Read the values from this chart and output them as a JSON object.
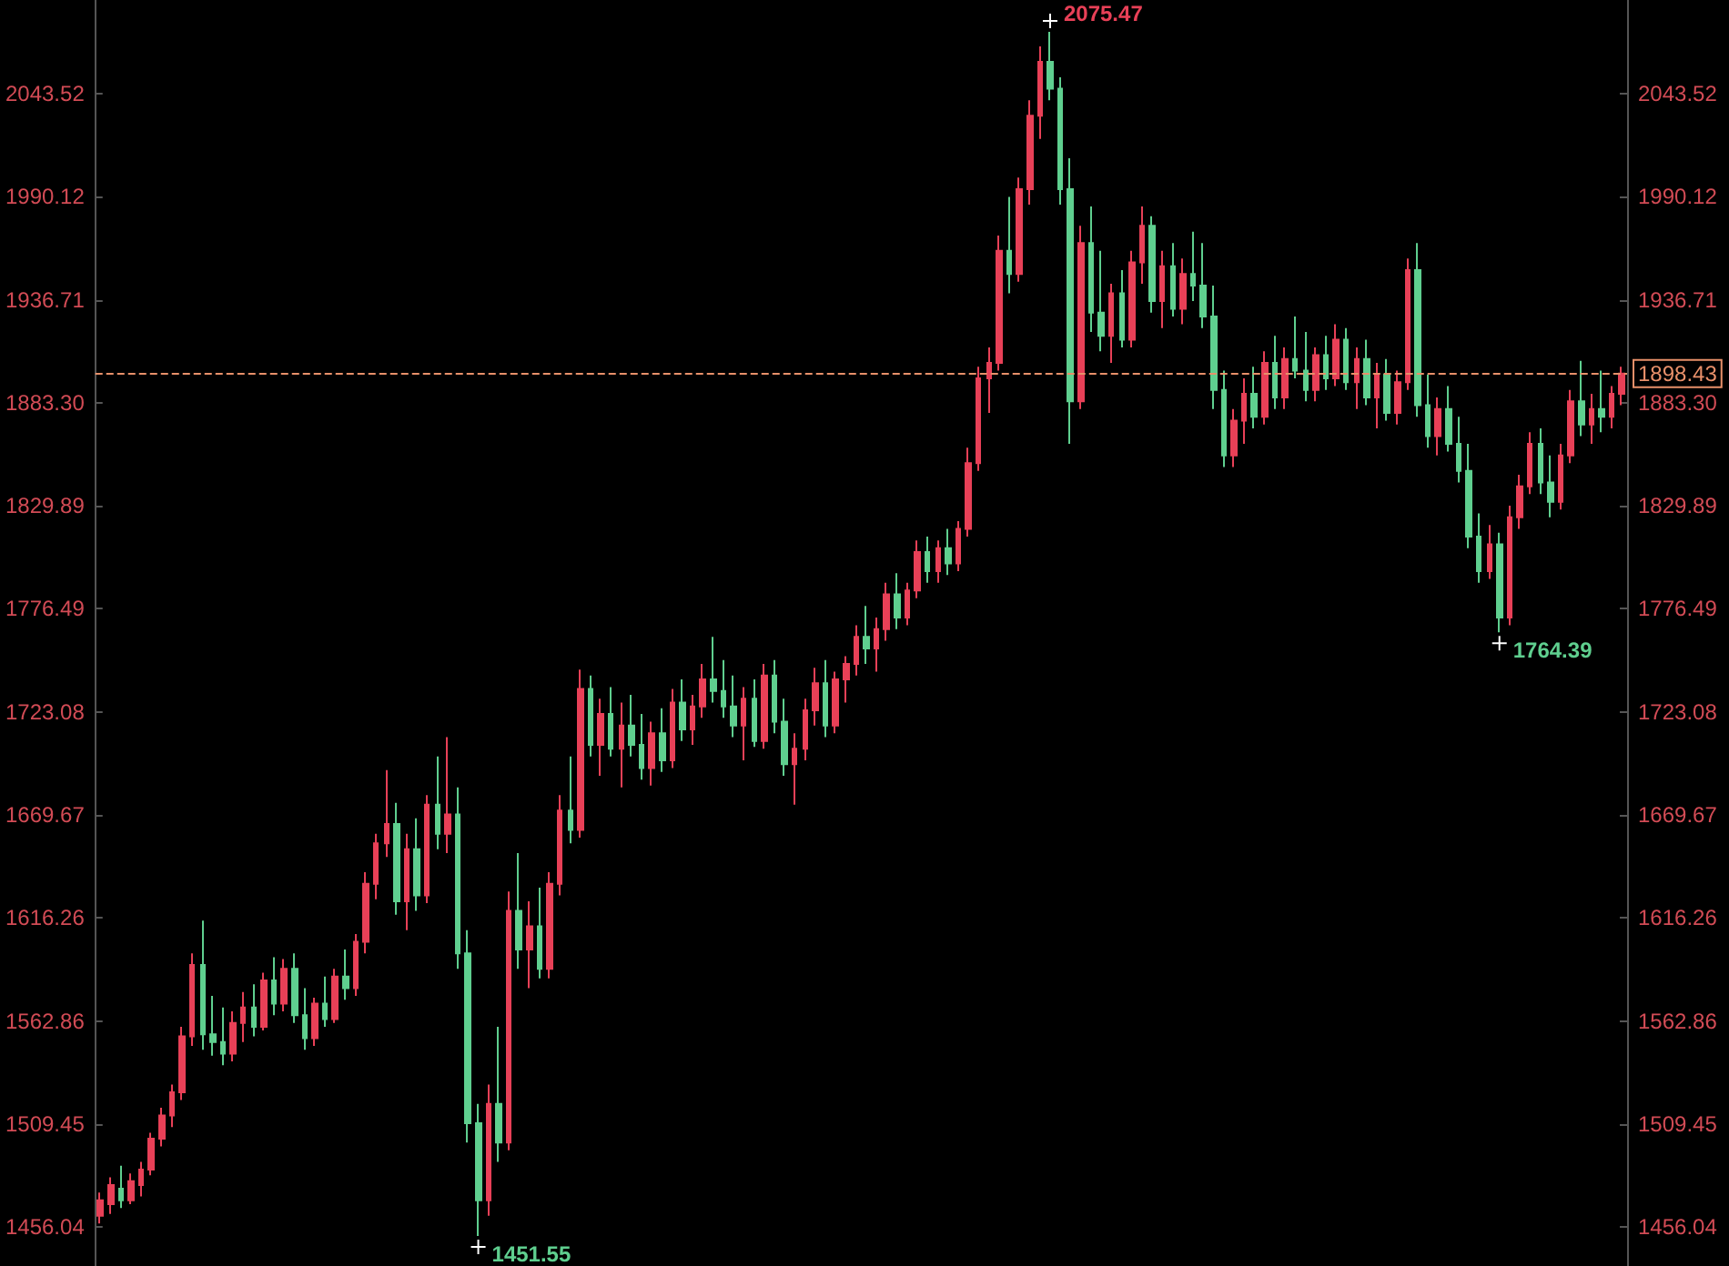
{
  "chart_data": {
    "type": "candlestick",
    "categories": [
      null,
      null,
      null,
      null,
      null,
      null,
      null,
      null,
      null,
      null,
      null,
      null,
      null,
      null,
      null,
      null,
      null,
      null,
      null,
      null,
      null,
      null,
      null,
      null,
      null,
      null,
      null,
      null,
      null,
      null,
      null,
      null,
      null,
      null,
      null,
      null,
      null,
      null,
      null,
      null,
      null,
      null,
      null,
      null,
      null,
      null,
      null,
      null,
      null,
      null,
      null,
      null,
      null,
      null,
      null,
      null,
      null,
      null,
      null,
      null,
      null,
      null,
      null,
      null,
      null,
      null,
      null,
      null,
      null,
      null,
      null,
      null,
      null,
      null,
      null,
      null,
      null,
      null,
      null,
      null,
      null,
      null,
      null,
      null,
      null,
      null,
      null,
      null,
      null,
      null,
      null,
      null,
      null,
      null,
      null,
      null,
      null,
      null,
      null,
      null,
      null,
      null,
      null,
      null,
      null,
      null,
      null,
      null,
      null,
      null,
      null,
      null,
      null,
      null,
      null,
      null,
      null,
      null,
      null,
      null,
      null,
      null,
      null,
      null,
      null,
      null,
      null,
      null,
      null,
      null,
      null,
      null,
      null,
      null,
      null,
      null,
      null,
      null,
      null,
      null,
      null,
      null,
      null,
      null,
      null,
      null,
      null,
      null,
      null,
      null
    ],
    "ohlc": [
      [
        1462,
        1474,
        1458,
        1470
      ],
      [
        1468,
        1482,
        1463,
        1478
      ],
      [
        1476,
        1488,
        1466,
        1470
      ],
      [
        1470,
        1484,
        1468,
        1480
      ],
      [
        1478,
        1490,
        1472,
        1486
      ],
      [
        1486,
        1505,
        1483,
        1502
      ],
      [
        1502,
        1518,
        1498,
        1514
      ],
      [
        1514,
        1530,
        1508,
        1526
      ],
      [
        1526,
        1560,
        1522,
        1555
      ],
      [
        1555,
        1598,
        1550,
        1592
      ],
      [
        1592,
        1615,
        1548,
        1556
      ],
      [
        1556,
        1576,
        1545,
        1552
      ],
      [
        1552,
        1570,
        1540,
        1546
      ],
      [
        1546,
        1568,
        1542,
        1562
      ],
      [
        1562,
        1578,
        1552,
        1570
      ],
      [
        1570,
        1582,
        1555,
        1560
      ],
      [
        1560,
        1588,
        1558,
        1584
      ],
      [
        1584,
        1596,
        1566,
        1572
      ],
      [
        1572,
        1595,
        1568,
        1590
      ],
      [
        1590,
        1598,
        1562,
        1566
      ],
      [
        1566,
        1580,
        1548,
        1554
      ],
      [
        1554,
        1575,
        1550,
        1572
      ],
      [
        1572,
        1586,
        1560,
        1564
      ],
      [
        1564,
        1590,
        1562,
        1586
      ],
      [
        1586,
        1600,
        1574,
        1580
      ],
      [
        1580,
        1608,
        1576,
        1604
      ],
      [
        1604,
        1640,
        1598,
        1634
      ],
      [
        1634,
        1660,
        1626,
        1655
      ],
      [
        1655,
        1693,
        1648,
        1665
      ],
      [
        1665,
        1676,
        1618,
        1625
      ],
      [
        1625,
        1660,
        1610,
        1652
      ],
      [
        1652,
        1668,
        1620,
        1628
      ],
      [
        1628,
        1680,
        1624,
        1675
      ],
      [
        1675,
        1700,
        1652,
        1660
      ],
      [
        1660,
        1710,
        1650,
        1670
      ],
      [
        1670,
        1684,
        1590,
        1598
      ],
      [
        1598,
        1610,
        1500,
        1510
      ],
      [
        1510,
        1520,
        1451.55,
        1470
      ],
      [
        1470,
        1530,
        1462,
        1520
      ],
      [
        1520,
        1560,
        1490,
        1500
      ],
      [
        1500,
        1630,
        1496,
        1620
      ],
      [
        1620,
        1650,
        1590,
        1600
      ],
      [
        1600,
        1625,
        1580,
        1612
      ],
      [
        1612,
        1632,
        1585,
        1590
      ],
      [
        1590,
        1640,
        1585,
        1634
      ],
      [
        1634,
        1680,
        1628,
        1672
      ],
      [
        1672,
        1700,
        1655,
        1662
      ],
      [
        1662,
        1745,
        1658,
        1735
      ],
      [
        1735,
        1742,
        1700,
        1706
      ],
      [
        1706,
        1730,
        1690,
        1722
      ],
      [
        1722,
        1736,
        1700,
        1704
      ],
      [
        1704,
        1728,
        1684,
        1716
      ],
      [
        1716,
        1732,
        1700,
        1706
      ],
      [
        1706,
        1722,
        1688,
        1694
      ],
      [
        1694,
        1718,
        1685,
        1712
      ],
      [
        1712,
        1725,
        1692,
        1698
      ],
      [
        1698,
        1735,
        1694,
        1728
      ],
      [
        1728,
        1740,
        1708,
        1714
      ],
      [
        1714,
        1732,
        1706,
        1726
      ],
      [
        1726,
        1748,
        1720,
        1740
      ],
      [
        1740,
        1762,
        1728,
        1734
      ],
      [
        1734,
        1750,
        1720,
        1726
      ],
      [
        1726,
        1742,
        1710,
        1716
      ],
      [
        1716,
        1736,
        1698,
        1730
      ],
      [
        1730,
        1740,
        1705,
        1708
      ],
      [
        1708,
        1748,
        1704,
        1742
      ],
      [
        1742,
        1750,
        1712,
        1718
      ],
      [
        1718,
        1730,
        1690,
        1696
      ],
      [
        1696,
        1712,
        1675,
        1704
      ],
      [
        1704,
        1730,
        1698,
        1724
      ],
      [
        1724,
        1746,
        1716,
        1738
      ],
      [
        1738,
        1750,
        1710,
        1716
      ],
      [
        1716,
        1744,
        1712,
        1740
      ],
      [
        1740,
        1752,
        1728,
        1748
      ],
      [
        1748,
        1768,
        1742,
        1762
      ],
      [
        1762,
        1778,
        1748,
        1756
      ],
      [
        1756,
        1772,
        1744,
        1766
      ],
      [
        1766,
        1790,
        1760,
        1784
      ],
      [
        1784,
        1795,
        1766,
        1772
      ],
      [
        1772,
        1790,
        1768,
        1786
      ],
      [
        1786,
        1812,
        1782,
        1806
      ],
      [
        1806,
        1814,
        1790,
        1796
      ],
      [
        1796,
        1812,
        1790,
        1808
      ],
      [
        1808,
        1818,
        1794,
        1800
      ],
      [
        1800,
        1822,
        1796,
        1818
      ],
      [
        1818,
        1860,
        1814,
        1852
      ],
      [
        1852,
        1902,
        1848,
        1896
      ],
      [
        1896,
        1912,
        1878,
        1904
      ],
      [
        1904,
        1970,
        1900,
        1962
      ],
      [
        1962,
        1990,
        1940,
        1950
      ],
      [
        1950,
        2000,
        1946,
        1994
      ],
      [
        1994,
        2040,
        1986,
        2032
      ],
      [
        2032,
        2068,
        2020,
        2060
      ],
      [
        2060,
        2075.47,
        2040,
        2046
      ],
      [
        2046,
        2052,
        1986,
        1994
      ],
      [
        1994,
        2010,
        1862,
        1884
      ],
      [
        1884,
        1975,
        1880,
        1966
      ],
      [
        1966,
        1985,
        1920,
        1930
      ],
      [
        1930,
        1962,
        1910,
        1918
      ],
      [
        1918,
        1945,
        1904,
        1940
      ],
      [
        1940,
        1952,
        1912,
        1916
      ],
      [
        1916,
        1962,
        1912,
        1956
      ],
      [
        1956,
        1985,
        1945,
        1975
      ],
      [
        1975,
        1980,
        1930,
        1936
      ],
      [
        1936,
        1962,
        1922,
        1954
      ],
      [
        1954,
        1966,
        1928,
        1932
      ],
      [
        1932,
        1958,
        1924,
        1950
      ],
      [
        1950,
        1972,
        1936,
        1944
      ],
      [
        1944,
        1966,
        1922,
        1928
      ],
      [
        1928,
        1944,
        1880,
        1890
      ],
      [
        1890,
        1900,
        1850,
        1856
      ],
      [
        1856,
        1880,
        1850,
        1874
      ],
      [
        1874,
        1896,
        1862,
        1888
      ],
      [
        1888,
        1902,
        1870,
        1876
      ],
      [
        1876,
        1910,
        1872,
        1904
      ],
      [
        1904,
        1918,
        1880,
        1886
      ],
      [
        1886,
        1912,
        1880,
        1906
      ],
      [
        1906,
        1928,
        1896,
        1900
      ],
      [
        1900,
        1920,
        1884,
        1890
      ],
      [
        1890,
        1912,
        1884,
        1908
      ],
      [
        1908,
        1918,
        1890,
        1896
      ],
      [
        1896,
        1924,
        1892,
        1916
      ],
      [
        1916,
        1922,
        1890,
        1894
      ],
      [
        1894,
        1912,
        1880,
        1906
      ],
      [
        1906,
        1916,
        1882,
        1886
      ],
      [
        1886,
        1904,
        1870,
        1898
      ],
      [
        1898,
        1906,
        1874,
        1878
      ],
      [
        1878,
        1900,
        1872,
        1894
      ],
      [
        1894,
        1958,
        1890,
        1952
      ],
      [
        1952,
        1966,
        1876,
        1882
      ],
      [
        1882,
        1898,
        1860,
        1866
      ],
      [
        1866,
        1886,
        1856,
        1880
      ],
      [
        1880,
        1892,
        1858,
        1862
      ],
      [
        1862,
        1876,
        1842,
        1848
      ],
      [
        1848,
        1862,
        1808,
        1814
      ],
      [
        1814,
        1826,
        1790,
        1796
      ],
      [
        1796,
        1820,
        1792,
        1810
      ],
      [
        1810,
        1816,
        1764.39,
        1772
      ],
      [
        1772,
        1830,
        1768,
        1824
      ],
      [
        1824,
        1846,
        1818,
        1840
      ],
      [
        1840,
        1868,
        1836,
        1862
      ],
      [
        1862,
        1870,
        1836,
        1842
      ],
      [
        1842,
        1856,
        1824,
        1832
      ],
      [
        1832,
        1862,
        1828,
        1856
      ],
      [
        1856,
        1890,
        1852,
        1884
      ],
      [
        1884,
        1905,
        1866,
        1872
      ],
      [
        1872,
        1888,
        1862,
        1880
      ],
      [
        1880,
        1900,
        1868,
        1876
      ],
      [
        1876,
        1892,
        1870,
        1888
      ],
      [
        1888,
        1902,
        1882,
        1898.43
      ]
    ],
    "colors": [
      "#e84057",
      "#e84057",
      "#5fcf8f",
      "#e84057",
      "#e84057",
      "#e84057",
      "#e84057",
      "#e84057",
      "#e84057",
      "#e84057",
      "#5fcf8f",
      "#5fcf8f",
      "#5fcf8f",
      "#e84057",
      "#e84057",
      "#5fcf8f",
      "#e84057",
      "#5fcf8f",
      "#e84057",
      "#5fcf8f",
      "#5fcf8f",
      "#e84057",
      "#5fcf8f",
      "#e84057",
      "#5fcf8f",
      "#e84057",
      "#e84057",
      "#e84057",
      "#e84057",
      "#5fcf8f",
      "#e84057",
      "#5fcf8f",
      "#e84057",
      "#5fcf8f",
      "#e84057",
      "#5fcf8f",
      "#5fcf8f",
      "#5fcf8f",
      "#e84057",
      "#5fcf8f",
      "#e84057",
      "#5fcf8f",
      "#e84057",
      "#5fcf8f",
      "#e84057",
      "#e84057",
      "#5fcf8f",
      "#e84057",
      "#5fcf8f",
      "#e84057",
      "#5fcf8f",
      "#e84057",
      "#5fcf8f",
      "#5fcf8f",
      "#e84057",
      "#5fcf8f",
      "#e84057",
      "#5fcf8f",
      "#e84057",
      "#e84057",
      "#5fcf8f",
      "#5fcf8f",
      "#5fcf8f",
      "#e84057",
      "#5fcf8f",
      "#e84057",
      "#5fcf8f",
      "#5fcf8f",
      "#e84057",
      "#e84057",
      "#e84057",
      "#5fcf8f",
      "#e84057",
      "#e84057",
      "#e84057",
      "#5fcf8f",
      "#e84057",
      "#e84057",
      "#5fcf8f",
      "#e84057",
      "#e84057",
      "#5fcf8f",
      "#e84057",
      "#5fcf8f",
      "#e84057",
      "#e84057",
      "#e84057",
      "#e84057",
      "#e84057",
      "#5fcf8f",
      "#e84057",
      "#e84057",
      "#e84057",
      "#5fcf8f",
      "#5fcf8f",
      "#5fcf8f",
      "#e84057",
      "#5fcf8f",
      "#5fcf8f",
      "#e84057",
      "#5fcf8f",
      "#e84057",
      "#e84057",
      "#5fcf8f",
      "#e84057",
      "#5fcf8f",
      "#e84057",
      "#5fcf8f",
      "#5fcf8f",
      "#5fcf8f",
      "#5fcf8f",
      "#e84057",
      "#e84057",
      "#5fcf8f",
      "#e84057",
      "#5fcf8f",
      "#e84057",
      "#5fcf8f",
      "#5fcf8f",
      "#e84057",
      "#5fcf8f",
      "#e84057",
      "#5fcf8f",
      "#e84057",
      "#5fcf8f",
      "#e84057",
      "#5fcf8f",
      "#e84057",
      "#e84057",
      "#5fcf8f",
      "#5fcf8f",
      "#e84057",
      "#5fcf8f",
      "#5fcf8f",
      "#5fcf8f",
      "#5fcf8f",
      "#e84057",
      "#5fcf8f",
      "#e84057",
      "#e84057",
      "#e84057",
      "#5fcf8f",
      "#5fcf8f",
      "#e84057",
      "#e84057",
      "#5fcf8f",
      "#e84057",
      "#5fcf8f",
      "#e84057",
      "#e84057"
    ],
    "ylim": [
      1436,
      2092
    ],
    "yticks": [
      1456.04,
      1509.45,
      1562.86,
      1616.26,
      1669.67,
      1723.08,
      1776.49,
      1829.89,
      {
        "value": 1883.3,
        "label": "1883.30"
      },
      1936.71,
      1990.12,
      2043.52
    ],
    "y2lim": [
      1436,
      2092
    ],
    "y2ticks": [
      1456.04,
      1509.45,
      1562.86,
      1616.26,
      1669.67,
      1723.08,
      1776.49,
      1829.89,
      {
        "value": 1883.3,
        "label": "1883.30"
      },
      1936.71,
      1990.12,
      2043.52
    ],
    "tick_labels": "y",
    "grid": false,
    "ref_lines": [
      {
        "axis": "y",
        "value": 1898.43,
        "label": "1898.43",
        "color": "#e8906a",
        "line_style": "dashed"
      }
    ],
    "annotations": [
      "2075.47",
      "1451.55",
      "1764.39"
    ]
  }
}
